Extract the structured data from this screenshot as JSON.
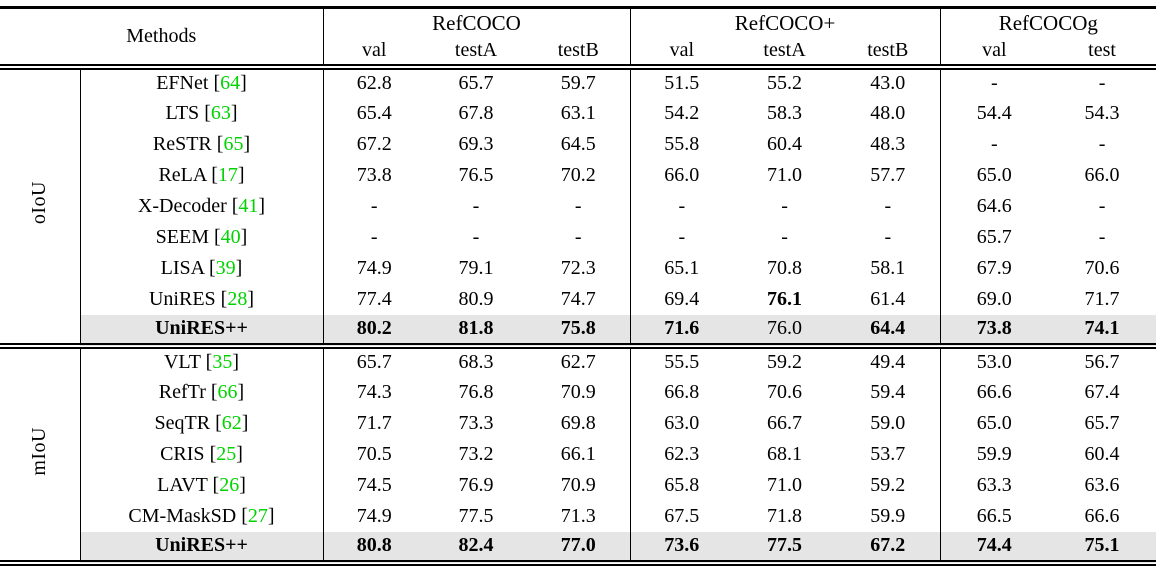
{
  "table": {
    "header": {
      "methods_label": "Methods",
      "groups": [
        {
          "label": "RefCOCO",
          "cols": [
            "val",
            "testA",
            "testB"
          ]
        },
        {
          "label": "RefCOCO+",
          "cols": [
            "val",
            "testA",
            "testB"
          ]
        },
        {
          "label": "RefCOCOg",
          "cols": [
            "val",
            "test"
          ]
        }
      ]
    },
    "sections": [
      {
        "metric": "oIoU",
        "rows": [
          {
            "method": "EFNet",
            "cite": "64",
            "values": [
              "62.8",
              "65.7",
              "59.7",
              "51.5",
              "55.2",
              "43.0",
              "-",
              "-"
            ]
          },
          {
            "method": "LTS",
            "cite": "63",
            "values": [
              "65.4",
              "67.8",
              "63.1",
              "54.2",
              "58.3",
              "48.0",
              "54.4",
              "54.3"
            ]
          },
          {
            "method": "ReSTR",
            "cite": "65",
            "values": [
              "67.2",
              "69.3",
              "64.5",
              "55.8",
              "60.4",
              "48.3",
              "-",
              "-"
            ]
          },
          {
            "method": "ReLA",
            "cite": "17",
            "values": [
              "73.8",
              "76.5",
              "70.2",
              "66.0",
              "71.0",
              "57.7",
              "65.0",
              "66.0"
            ]
          },
          {
            "method": "X-Decoder",
            "cite": "41",
            "values": [
              "-",
              "-",
              "-",
              "-",
              "-",
              "-",
              "64.6",
              "-"
            ]
          },
          {
            "method": "SEEM",
            "cite": "40",
            "values": [
              "-",
              "-",
              "-",
              "-",
              "-",
              "-",
              "65.7",
              "-"
            ]
          },
          {
            "method": "LISA",
            "cite": "39",
            "values": [
              "74.9",
              "79.1",
              "72.3",
              "65.1",
              "70.8",
              "58.1",
              "67.9",
              "70.6"
            ]
          },
          {
            "method": "UniRES",
            "cite": "28",
            "values": [
              "77.4",
              "80.9",
              "74.7",
              "69.4",
              "76.1",
              "61.4",
              "69.0",
              "71.7"
            ],
            "bold_values": [
              4
            ]
          },
          {
            "method": "UniRES++",
            "cite": "",
            "values": [
              "80.2",
              "81.8",
              "75.8",
              "71.6",
              "76.0",
              "64.4",
              "73.8",
              "74.1"
            ],
            "bold_values": [
              0,
              1,
              2,
              3,
              5,
              6,
              7
            ],
            "bold_method": true,
            "highlight": true
          }
        ]
      },
      {
        "metric": "mIoU",
        "rows": [
          {
            "method": "VLT",
            "cite": "35",
            "values": [
              "65.7",
              "68.3",
              "62.7",
              "55.5",
              "59.2",
              "49.4",
              "53.0",
              "56.7"
            ]
          },
          {
            "method": "RefTr",
            "cite": "66",
            "values": [
              "74.3",
              "76.8",
              "70.9",
              "66.8",
              "70.6",
              "59.4",
              "66.6",
              "67.4"
            ]
          },
          {
            "method": "SeqTR",
            "cite": "62",
            "values": [
              "71.7",
              "73.3",
              "69.8",
              "63.0",
              "66.7",
              "59.0",
              "65.0",
              "65.7"
            ]
          },
          {
            "method": "CRIS",
            "cite": "25",
            "values": [
              "70.5",
              "73.2",
              "66.1",
              "62.3",
              "68.1",
              "53.7",
              "59.9",
              "60.4"
            ]
          },
          {
            "method": "LAVT",
            "cite": "26",
            "values": [
              "74.5",
              "76.9",
              "70.9",
              "65.8",
              "71.0",
              "59.2",
              "63.3",
              "63.6"
            ]
          },
          {
            "method": "CM-MaskSD",
            "cite": "27",
            "values": [
              "74.9",
              "77.5",
              "71.3",
              "67.5",
              "71.8",
              "59.9",
              "66.5",
              "66.6"
            ]
          },
          {
            "method": "UniRES++",
            "cite": "",
            "values": [
              "80.8",
              "82.4",
              "77.0",
              "73.6",
              "77.5",
              "67.2",
              "74.4",
              "75.1"
            ],
            "bold_values": [
              0,
              1,
              2,
              3,
              4,
              5,
              6,
              7
            ],
            "bold_method": true,
            "highlight": true
          }
        ]
      }
    ],
    "colors": {
      "citation_green": "#00d300",
      "highlight_row_bg": "#e5e5e5"
    }
  }
}
